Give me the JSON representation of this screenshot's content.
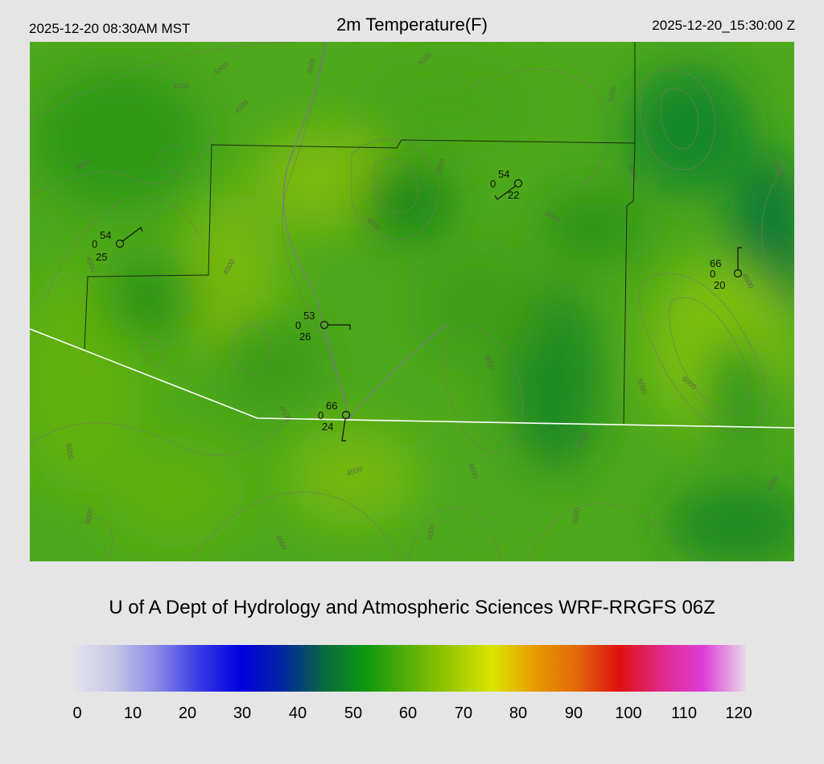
{
  "header": {
    "local_time": "2025-12-20 08:30AM MST",
    "title": "2m Temperature(F)",
    "utc_time": "2025-12-20_15:30:00 Z"
  },
  "credit": "U of A Dept of Hydrology and Atmospheric Sciences WRF-RRGFS 06Z",
  "colorbar": {
    "ticks": [
      "0",
      "10",
      "20",
      "30",
      "40",
      "50",
      "60",
      "70",
      "80",
      "90",
      "100",
      "110",
      "120"
    ],
    "colors": [
      "#e4e4ee",
      "#c6c6e6",
      "#8a8ae8",
      "#3a3ae6",
      "#0000e0",
      "#0026a0",
      "#0a6a3e",
      "#0e9a10",
      "#58ae08",
      "#9ac800",
      "#dce400",
      "#e89a00",
      "#e2680a",
      "#e01010",
      "#e0288a",
      "#dc3ed8",
      "#e8d6e6"
    ]
  },
  "contour_labels": [
    "3000",
    "3500",
    "4000",
    "4500",
    "5000",
    "5500",
    "6000"
  ],
  "stations": [
    {
      "temp": "54",
      "cloud": "0",
      "dew": "25"
    },
    {
      "temp": "54",
      "cloud": "0",
      "dew": "22"
    },
    {
      "temp": "66",
      "cloud": "0",
      "dew": "20"
    },
    {
      "temp": "53",
      "cloud": "0",
      "dew": "26"
    },
    {
      "temp": "66",
      "cloud": "0",
      "dew": "24"
    }
  ]
}
